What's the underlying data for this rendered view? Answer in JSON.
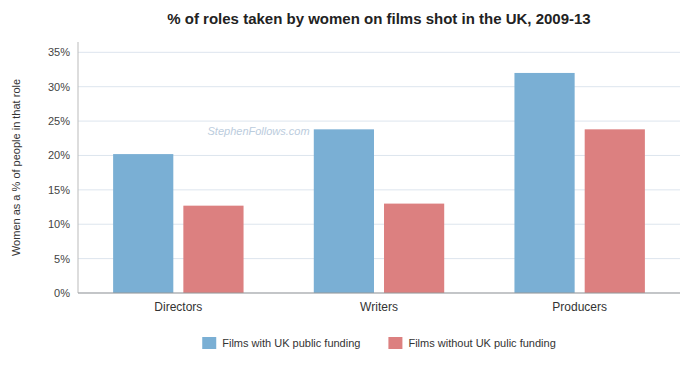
{
  "chart_data": {
    "type": "bar",
    "title": "% of roles taken by women on films shot in the UK, 2009-13",
    "y_label": "Women as a % of people in that role",
    "categories": [
      "Directors",
      "Writers",
      "Producers"
    ],
    "series": [
      {
        "name": "Films with UK public funding",
        "color": "#7AAFD4",
        "values": [
          20.2,
          23.8,
          32.0
        ]
      },
      {
        "name": "Films without UK pulic funding",
        "color": "#DC8080",
        "values": [
          12.7,
          13.0,
          23.8
        ]
      }
    ],
    "ylim": [
      0,
      36.5
    ],
    "yticks": [
      {
        "value": 0,
        "label": "0%"
      },
      {
        "value": 5,
        "label": "5%"
      },
      {
        "value": 10,
        "label": "10%"
      },
      {
        "value": 15,
        "label": "15%"
      },
      {
        "value": 20,
        "label": "20%"
      },
      {
        "value": 25,
        "label": "25%"
      },
      {
        "value": 30,
        "label": "30%"
      },
      {
        "value": 35,
        "label": "35%"
      }
    ],
    "grid": true,
    "legend": "bottom",
    "annotations": [
      "StephenFollows.com"
    ]
  }
}
